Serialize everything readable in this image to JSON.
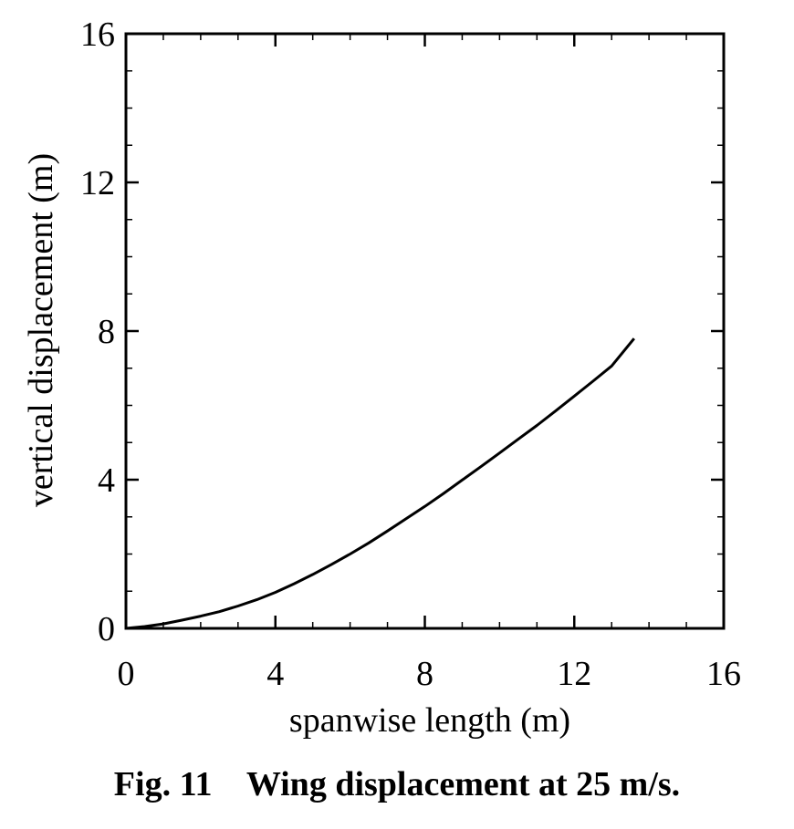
{
  "chart_data": {
    "type": "line",
    "title": "",
    "xlabel": "spanwise length (m)",
    "ylabel": "vertical displacement (m)",
    "xlim": [
      0,
      16
    ],
    "ylim": [
      0,
      16
    ],
    "xticks": [
      "0",
      "4",
      "8",
      "12",
      "16"
    ],
    "yticks": [
      "0",
      "4",
      "8",
      "12",
      "16"
    ],
    "grid": false,
    "legend": "none",
    "line_color": "#000000",
    "series": [
      {
        "x": [
          0,
          0.5,
          1,
          1.5,
          2,
          2.5,
          3,
          3.5,
          4,
          4.5,
          5,
          5.5,
          6,
          6.5,
          7,
          7.5,
          8,
          8.5,
          9,
          9.5,
          10,
          10.5,
          11,
          11.5,
          12,
          12.5,
          13,
          13.6
        ],
        "y": [
          0,
          0.05,
          0.12,
          0.22,
          0.33,
          0.45,
          0.6,
          0.77,
          0.97,
          1.2,
          1.45,
          1.72,
          2.0,
          2.3,
          2.62,
          2.95,
          3.28,
          3.63,
          3.99,
          4.35,
          4.72,
          5.09,
          5.46,
          5.85,
          6.25,
          6.65,
          7.06,
          7.8
        ]
      }
    ]
  },
  "caption": {
    "label": "Fig. 11",
    "text": "Wing displacement at 25 m/s."
  }
}
